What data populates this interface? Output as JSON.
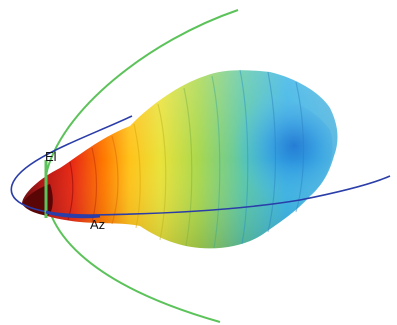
{
  "figure": {
    "labels": {
      "elevation": "El",
      "azimuth": "Az"
    },
    "colors": {
      "background": "#ffffff",
      "azimuth_cut": "#2a3da8",
      "elevation_cut": "#5cc25a",
      "pattern_peak": "#8a0d0d",
      "pattern_high": "#ff5a00",
      "pattern_mid": "#e6d23a",
      "pattern_low": "#9fd24a",
      "pattern_back": "#3fb6e6"
    },
    "colormap": "jet"
  }
}
